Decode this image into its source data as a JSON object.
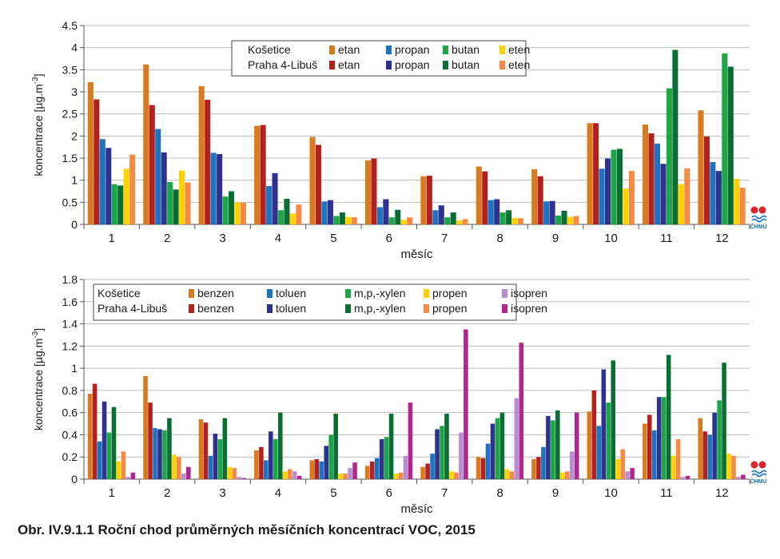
{
  "caption": "Obr. IV.9.1.1 Roční chod průměrných měsíčních koncentrací VOC, 2015",
  "logo_text": "ČHMÚ",
  "colors": {
    "kos_etan": "#d87a1f",
    "kos_propan": "#1e73be",
    "kos_butan": "#1ea548",
    "kos_eten": "#ffd200",
    "pra_etan": "#b3201d",
    "pra_propan": "#2e3190",
    "pra_butan": "#0a6d34",
    "pra_eten": "#f58a45",
    "kos_benzen": "#d87a1f",
    "kos_toluen": "#1e73be",
    "kos_xylen": "#1ea548",
    "kos_propen": "#ffd200",
    "kos_isopren": "#b78fd1",
    "pra_benzen": "#b3201d",
    "pra_toluen": "#2e3190",
    "pra_xylen": "#0a6d34",
    "pra_propen": "#f58a45",
    "pra_isopren": "#b3268e"
  },
  "chart_data": [
    {
      "type": "bar",
      "xlabel": "měsíc",
      "ylabel": "koncentrace [µg.m-3]",
      "ylim": [
        0,
        4.5
      ],
      "yticks": [
        "0",
        "0.5",
        "1",
        "1.5",
        "2",
        "2.5",
        "3",
        "3.5",
        "4",
        "4.5"
      ],
      "grid": true,
      "legend": "top-center",
      "legend_rows": [
        "Košetice",
        "Praha 4-Libuš"
      ],
      "categories": [
        "1",
        "2",
        "3",
        "4",
        "5",
        "6",
        "7",
        "8",
        "9",
        "10",
        "11",
        "12"
      ],
      "series": [
        {
          "name": "etan",
          "station": "Košetice",
          "color_key": "kos_etan",
          "values": [
            3.22,
            3.62,
            3.13,
            2.23,
            1.98,
            1.45,
            1.09,
            1.31,
            1.25,
            2.29,
            2.26,
            2.58
          ]
        },
        {
          "name": "etan",
          "station": "Praha 4-Libuš",
          "color_key": "pra_etan",
          "values": [
            2.83,
            2.7,
            2.82,
            2.25,
            1.8,
            1.49,
            1.1,
            1.2,
            1.09,
            2.29,
            2.06,
            1.99
          ]
        },
        {
          "name": "propan",
          "station": "Košetice",
          "color_key": "kos_propan",
          "values": [
            1.93,
            2.16,
            1.62,
            0.87,
            0.52,
            0.39,
            0.32,
            0.55,
            0.52,
            1.26,
            1.83,
            1.41
          ]
        },
        {
          "name": "propan",
          "station": "Praha 4-Libuš",
          "color_key": "pra_propan",
          "values": [
            1.73,
            1.63,
            1.59,
            1.16,
            0.55,
            0.57,
            0.43,
            0.57,
            0.53,
            1.49,
            1.37,
            1.21
          ]
        },
        {
          "name": "butan",
          "station": "Košetice",
          "color_key": "kos_butan",
          "values": [
            0.91,
            0.96,
            0.63,
            0.32,
            0.19,
            0.16,
            0.16,
            0.27,
            0.2,
            1.69,
            3.08,
            3.87
          ]
        },
        {
          "name": "butan",
          "station": "Praha 4-Libuš",
          "color_key": "pra_butan",
          "values": [
            0.88,
            0.79,
            0.75,
            0.58,
            0.27,
            0.33,
            0.27,
            0.32,
            0.31,
            1.71,
            3.95,
            3.57
          ]
        },
        {
          "name": "eten",
          "station": "Košetice",
          "color_key": "kos_eten",
          "values": [
            1.26,
            1.22,
            0.5,
            0.25,
            0.17,
            0.1,
            0.09,
            0.15,
            0.17,
            0.81,
            0.91,
            1.03
          ]
        },
        {
          "name": "eten",
          "station": "Praha 4-Libuš",
          "color_key": "pra_eten",
          "values": [
            1.58,
            0.95,
            0.49,
            0.45,
            0.16,
            0.16,
            0.12,
            0.14,
            0.19,
            1.21,
            1.27,
            0.83
          ]
        }
      ]
    },
    {
      "type": "bar",
      "xlabel": "měsíc",
      "ylabel": "koncentrace [µg.m-3]",
      "ylim": [
        0,
        1.8
      ],
      "yticks": [
        "0",
        "0.2",
        "0.4",
        "0.6",
        "0.8",
        "1",
        "1.2",
        "1.4",
        "1.6",
        "1.8"
      ],
      "grid": true,
      "legend": "top-center",
      "legend_rows": [
        "Košetice",
        "Praha 4-Libuš"
      ],
      "categories": [
        "1",
        "2",
        "3",
        "4",
        "5",
        "6",
        "7",
        "8",
        "9",
        "10",
        "11",
        "12"
      ],
      "series": [
        {
          "name": "benzen",
          "station": "Košetice",
          "color_key": "kos_benzen",
          "values": [
            0.77,
            0.93,
            0.54,
            0.26,
            0.17,
            0.12,
            0.11,
            0.2,
            0.18,
            0.61,
            0.5,
            0.55
          ]
        },
        {
          "name": "benzen",
          "station": "Praha 4-Libuš",
          "color_key": "pra_benzen",
          "values": [
            0.86,
            0.69,
            0.51,
            0.29,
            0.18,
            0.16,
            0.14,
            0.19,
            0.2,
            0.8,
            0.58,
            0.43
          ]
        },
        {
          "name": "toluen",
          "station": "Košetice",
          "color_key": "kos_toluen",
          "values": [
            0.34,
            0.46,
            0.21,
            0.17,
            0.16,
            0.19,
            0.23,
            0.32,
            0.29,
            0.48,
            0.44,
            0.4
          ]
        },
        {
          "name": "toluen",
          "station": "Praha 4-Libuš",
          "color_key": "pra_toluen",
          "values": [
            0.7,
            0.45,
            0.41,
            0.43,
            0.3,
            0.36,
            0.45,
            0.5,
            0.57,
            0.99,
            0.74,
            0.6
          ]
        },
        {
          "name": "m,p,-xylen",
          "station": "Košetice",
          "color_key": "kos_xylen",
          "values": [
            0.42,
            0.44,
            0.36,
            0.36,
            0.4,
            0.38,
            0.48,
            0.55,
            0.53,
            0.69,
            0.74,
            0.71
          ]
        },
        {
          "name": "m,p,-xylen",
          "station": "Praha 4-Libuš",
          "color_key": "pra_xylen",
          "values": [
            0.65,
            0.55,
            0.55,
            0.6,
            0.59,
            0.59,
            0.59,
            0.6,
            0.62,
            1.07,
            1.12,
            1.05
          ]
        },
        {
          "name": "propen",
          "station": "Košetice",
          "color_key": "kos_propen",
          "values": [
            0.16,
            0.22,
            0.11,
            0.07,
            0.05,
            0.05,
            0.07,
            0.09,
            0.06,
            0.18,
            0.21,
            0.23
          ]
        },
        {
          "name": "propen",
          "station": "Praha 4-Libuš",
          "color_key": "pra_propen",
          "values": [
            0.25,
            0.2,
            0.1,
            0.09,
            0.05,
            0.06,
            0.06,
            0.07,
            0.07,
            0.27,
            0.36,
            0.21
          ]
        },
        {
          "name": "isopren",
          "station": "Košetice",
          "color_key": "kos_isopren",
          "values": [
            0.02,
            0.05,
            0.02,
            0.07,
            0.1,
            0.21,
            0.42,
            0.73,
            0.25,
            0.07,
            0.02,
            0.02
          ]
        },
        {
          "name": "isopren",
          "station": "Praha 4-Libuš",
          "color_key": "pra_isopren",
          "values": [
            0.06,
            0.11,
            0.01,
            0.03,
            0.15,
            0.69,
            1.35,
            1.23,
            0.6,
            0.1,
            0.03,
            0.04
          ]
        }
      ]
    }
  ]
}
